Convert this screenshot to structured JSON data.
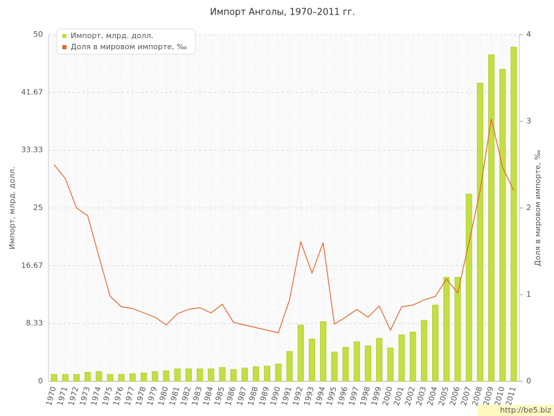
{
  "chart_data": {
    "type": "bar-line",
    "title": "Импорт Анголы, 1970–2011 гг.",
    "ylabel": "Импорт, млрд. долл.",
    "y2label": "Доля в мировом импорте, ‰",
    "categories": [
      "1970",
      "1971",
      "1972",
      "1973",
      "1974",
      "1975",
      "1976",
      "1977",
      "1978",
      "1979",
      "1980",
      "1981",
      "1982",
      "1983",
      "1984",
      "1985",
      "1986",
      "1987",
      "1988",
      "1989",
      "1990",
      "1991",
      "1992",
      "1993",
      "1994",
      "1995",
      "1996",
      "1997",
      "1998",
      "1999",
      "2000",
      "2001",
      "2002",
      "2003",
      "2004",
      "2005",
      "2006",
      "2007",
      "2008",
      "2009",
      "2010",
      "2011"
    ],
    "series": [
      {
        "name": "Импорт, млрд. долл.",
        "color": "#c3df45",
        "type": "bar",
        "values": [
          1.0,
          1.0,
          1.0,
          1.3,
          1.4,
          1.0,
          1.0,
          1.1,
          1.2,
          1.4,
          1.5,
          1.8,
          1.8,
          1.8,
          1.8,
          2.0,
          1.7,
          1.9,
          2.1,
          2.2,
          2.5,
          4.3,
          8.1,
          6.1,
          8.6,
          4.2,
          4.9,
          5.7,
          5.1,
          6.2,
          4.8,
          6.7,
          7.1,
          8.8,
          11.0,
          15.0,
          15.0,
          27.0,
          43.0,
          47.1,
          45.0,
          48.2
        ]
      },
      {
        "name": "Доля в мировом импорте, ‰",
        "color": "#e0662e",
        "type": "line",
        "axis": "y2",
        "values": [
          2.5,
          2.34,
          2.0,
          1.91,
          1.44,
          0.98,
          0.86,
          0.84,
          0.79,
          0.74,
          0.65,
          0.78,
          0.83,
          0.85,
          0.79,
          0.89,
          0.68,
          0.65,
          0.62,
          0.59,
          0.56,
          0.94,
          1.61,
          1.25,
          1.6,
          0.66,
          0.74,
          0.83,
          0.74,
          0.87,
          0.59,
          0.86,
          0.88,
          0.94,
          0.98,
          1.18,
          1.02,
          1.6,
          2.2,
          3.03,
          2.47,
          2.2
        ]
      }
    ],
    "ylim": [
      0,
      50
    ],
    "yticks": [
      0,
      8.33,
      16.67,
      25,
      33.33,
      41.67,
      50
    ],
    "y2lim": [
      0,
      4
    ],
    "y2ticks": [
      0,
      1,
      2,
      3,
      4
    ],
    "grid": true,
    "legend": "top-left",
    "watermark": "http://be5.biz"
  }
}
